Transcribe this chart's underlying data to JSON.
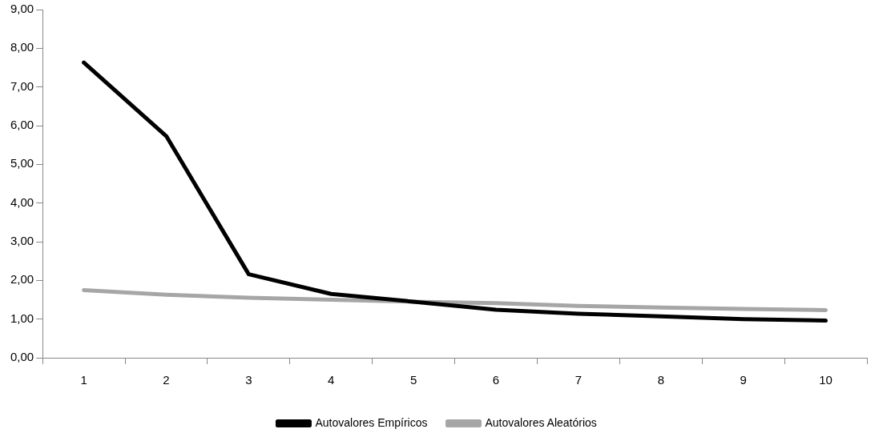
{
  "chart_data": {
    "type": "line",
    "categories": [
      "1",
      "2",
      "3",
      "4",
      "5",
      "6",
      "7",
      "8",
      "9",
      "10"
    ],
    "series": [
      {
        "name": "Autovalores Empíricos",
        "color": "#000000",
        "values": [
          7.63,
          5.73,
          2.16,
          1.65,
          1.45,
          1.24,
          1.14,
          1.07,
          1.0,
          0.96
        ]
      },
      {
        "name": "Autovalores Aleatórios",
        "color": "#a6a6a6",
        "values": [
          1.75,
          1.63,
          1.55,
          1.5,
          1.45,
          1.41,
          1.34,
          1.3,
          1.26,
          1.23
        ]
      }
    ],
    "ylim": [
      0,
      9
    ],
    "yticks": [
      {
        "value": 0,
        "label": "0,00"
      },
      {
        "value": 1,
        "label": "1,00"
      },
      {
        "value": 2,
        "label": "2,00"
      },
      {
        "value": 3,
        "label": "3,00"
      },
      {
        "value": 4,
        "label": "4,00"
      },
      {
        "value": 5,
        "label": "5,00"
      },
      {
        "value": 6,
        "label": "6,00"
      },
      {
        "value": 7,
        "label": "7,00"
      },
      {
        "value": 8,
        "label": "8,00"
      },
      {
        "value": 9,
        "label": "9,00"
      }
    ],
    "grid": false,
    "legend": "bottom",
    "marker": "none",
    "line_style": "solid"
  }
}
